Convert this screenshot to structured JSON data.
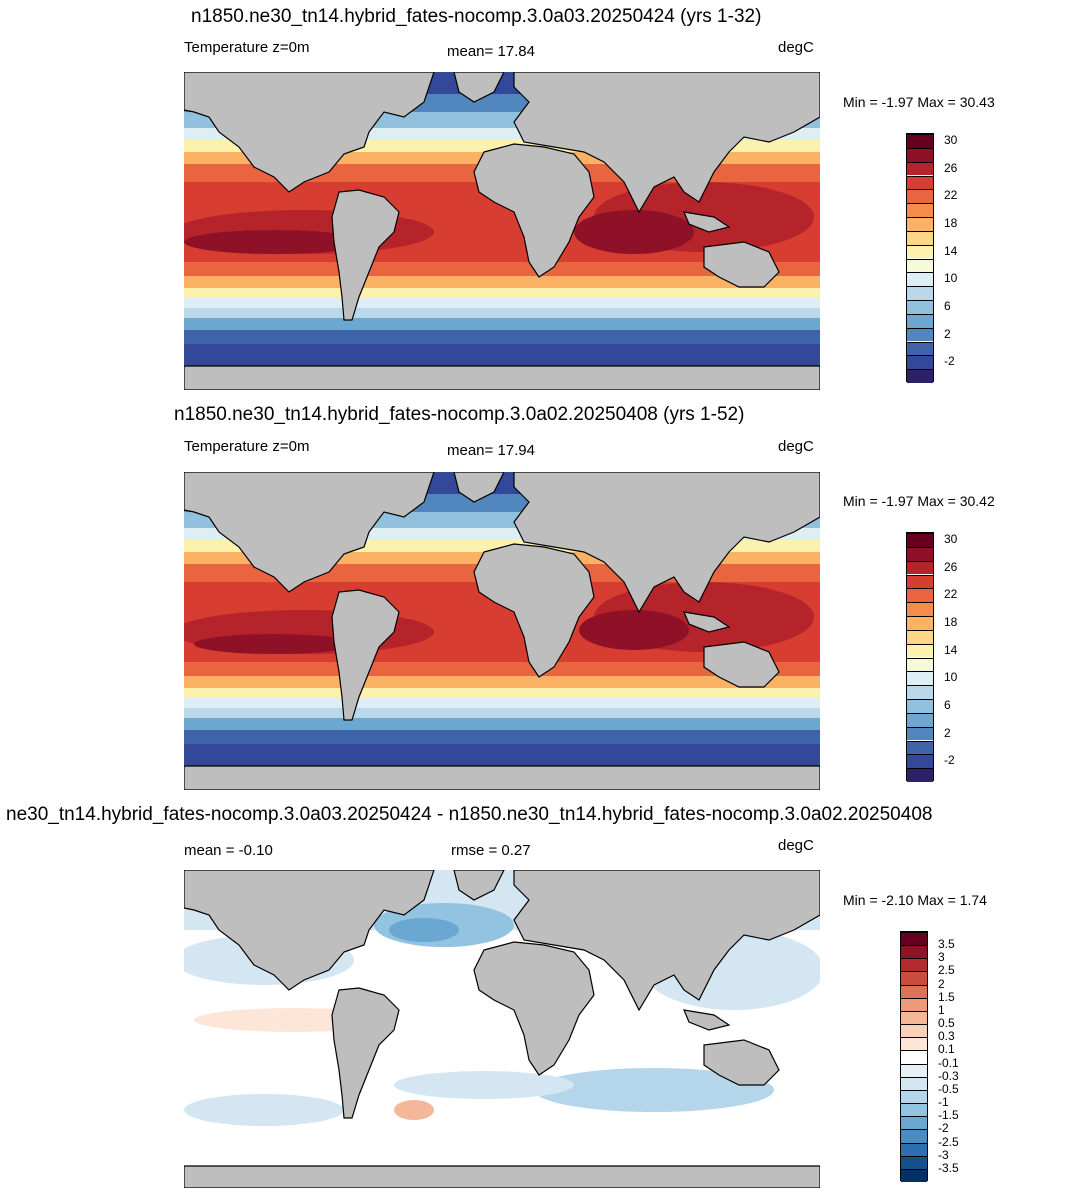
{
  "panels": [
    {
      "title": "n1850.ne30_tn14.hybrid_fates-nocomp.3.0a03.20250424 (yrs 1-32)",
      "left_label": "Temperature z=0m",
      "center_label": "mean=  17.84",
      "right_label": "degC",
      "minmax": "Min =  -1.97 Max =  30.43",
      "colorbar": {
        "colors": [
          "#2b2166",
          "#34489a",
          "#3e63a8",
          "#5286be",
          "#6ea6cf",
          "#92c1de",
          "#b9d9ea",
          "#ddeef5",
          "#f6f9da",
          "#fcf2ad",
          "#fdd788",
          "#fbb264",
          "#f58b4d",
          "#e86540",
          "#d73e31",
          "#b6242b",
          "#8e1127",
          "#67001f"
        ],
        "labels": [
          "-2",
          "2",
          "6",
          "10",
          "14",
          "18",
          "22",
          "26",
          "30"
        ]
      }
    },
    {
      "title": "n1850.ne30_tn14.hybrid_fates-nocomp.3.0a02.20250408 (yrs 1-52)",
      "left_label": "Temperature z=0m",
      "center_label": "mean=  17.94",
      "right_label": "degC",
      "minmax": "Min =  -1.97 Max =  30.42",
      "colorbar": {
        "colors": [
          "#2b2166",
          "#34489a",
          "#3e63a8",
          "#5286be",
          "#6ea6cf",
          "#92c1de",
          "#b9d9ea",
          "#ddeef5",
          "#f6f9da",
          "#fcf2ad",
          "#fdd788",
          "#fbb264",
          "#f58b4d",
          "#e86540",
          "#d73e31",
          "#b6242b",
          "#8e1127",
          "#67001f"
        ],
        "labels": [
          "-2",
          "2",
          "6",
          "10",
          "14",
          "18",
          "22",
          "26",
          "30"
        ]
      }
    },
    {
      "title": "ne30_tn14.hybrid_fates-nocomp.3.0a03.20250424 - n1850.ne30_tn14.hybrid_fates-nocomp.3.0a02.20250408",
      "left_label": "mean =  -0.10",
      "center_label": "rmse =   0.27",
      "right_label": "degC",
      "minmax": "Min =  -2.10 Max =   1.74",
      "colorbar": {
        "colors": [
          "#053061",
          "#154f8c",
          "#2d6fb0",
          "#4a8cc2",
          "#6aa8d2",
          "#92c3e0",
          "#b5d6ea",
          "#d4e6f1",
          "#e8f0f7",
          "#ffffff",
          "#fde6d8",
          "#f9d0b8",
          "#f5b799",
          "#ee9a7a",
          "#de7258",
          "#cc4c41",
          "#b42b2f",
          "#8f1327",
          "#67001f"
        ],
        "labels": [
          "-3.5",
          "-3",
          "-2.5",
          "-2",
          "-1.5",
          "-1",
          "-0.5",
          "-0.3",
          "-0.1",
          "0.1",
          "0.3",
          "0.5",
          "1",
          "1.5",
          "2",
          "2.5",
          "3",
          "3.5"
        ]
      }
    }
  ]
}
